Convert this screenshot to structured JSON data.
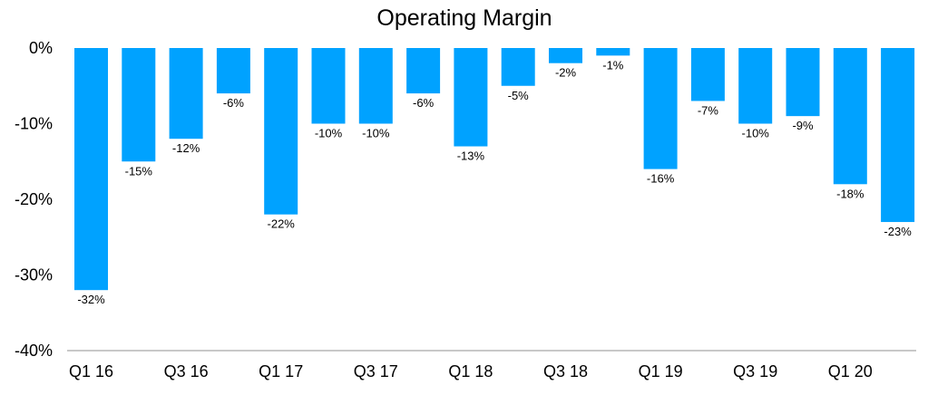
{
  "chart_data": {
    "type": "bar",
    "title": "Operating Margin",
    "xlabel": "",
    "ylabel": "",
    "categories": [
      "Q1 16",
      "Q2 16",
      "Q3 16",
      "Q4 16",
      "Q1 17",
      "Q2 17",
      "Q3 17",
      "Q4 17",
      "Q1 18",
      "Q2 18",
      "Q3 18",
      "Q4 18",
      "Q1 19",
      "Q2 19",
      "Q3 19",
      "Q4 19",
      "Q1 20",
      "Q2 20"
    ],
    "values": [
      -32,
      -15,
      -12,
      -6,
      -22,
      -10,
      -10,
      -6,
      -13,
      -5,
      -2,
      -1,
      -16,
      -7,
      -10,
      -9,
      -18,
      -23
    ],
    "data_labels": [
      "-32%",
      "-15%",
      "-12%",
      "-6%",
      "-22%",
      "-10%",
      "-10%",
      "-6%",
      "-13%",
      "-5%",
      "-2%",
      "-1%",
      "-16%",
      "-7%",
      "-10%",
      "-9%",
      "-18%",
      "-23%"
    ],
    "x_tick_labels": [
      "Q1 16",
      "Q3 16",
      "Q1 17",
      "Q3 17",
      "Q1 18",
      "Q3 18",
      "Q1 19",
      "Q3 19",
      "Q1 20"
    ],
    "y_ticks": [
      0,
      -10,
      -20,
      -30,
      -40
    ],
    "y_tick_labels": [
      "0%",
      "-10%",
      "-20%",
      "-30%",
      "-40%"
    ],
    "ylim": [
      -40,
      0
    ],
    "grid": false,
    "legend": "none",
    "bar_color": "#00A2FF"
  }
}
